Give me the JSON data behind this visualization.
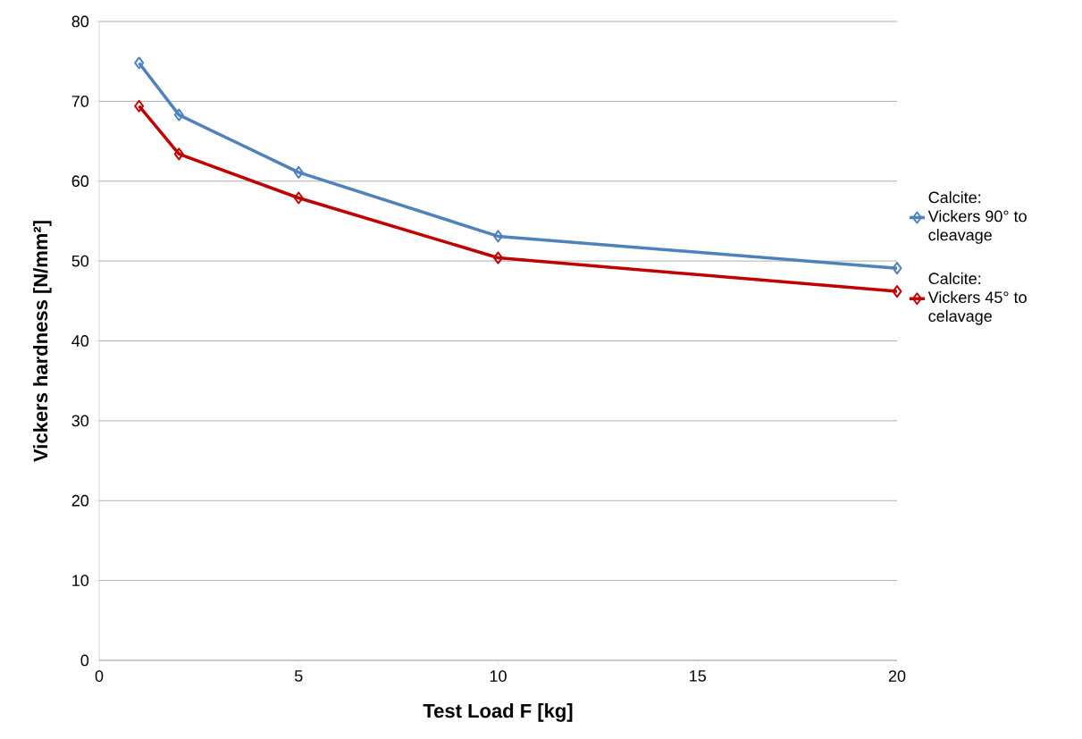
{
  "chart_data": {
    "type": "line",
    "xlabel": "Test Load F [kg]",
    "ylabel": "Vickers hardness [N/mm²]",
    "x": [
      1,
      2,
      5,
      10,
      20
    ],
    "series": [
      {
        "name": "Calcite: Vickers 90° to cleavage",
        "color": "#4f81bd",
        "values": [
          74.8,
          68.3,
          61.1,
          53.1,
          49.1
        ]
      },
      {
        "name": "Calcite: Vickers 45° to celavage",
        "color": "#c00000",
        "values": [
          69.4,
          63.4,
          57.9,
          50.4,
          46.2
        ]
      }
    ],
    "xlim": [
      0,
      20
    ],
    "ylim": [
      0,
      80
    ],
    "xticks": [
      0,
      5,
      10,
      15,
      20
    ],
    "yticks": [
      0,
      10,
      20,
      30,
      40,
      50,
      60,
      70,
      80
    ],
    "grid": "y",
    "legend": "right",
    "marker": "diamond",
    "line_style": "solid"
  }
}
